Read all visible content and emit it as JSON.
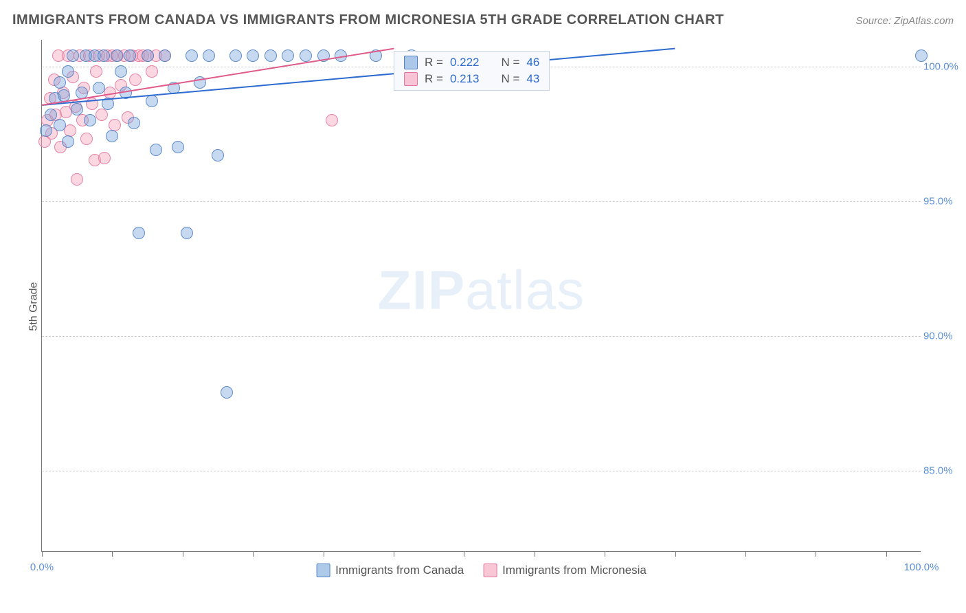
{
  "title": "IMMIGRANTS FROM CANADA VS IMMIGRANTS FROM MICRONESIA 5TH GRADE CORRELATION CHART",
  "source": "Source: ZipAtlas.com",
  "ylabel": "5th Grade",
  "watermark_a": "ZIP",
  "watermark_b": "atlas",
  "chart": {
    "xlim": [
      0,
      100
    ],
    "ylim": [
      82,
      101
    ],
    "yticks": [
      {
        "v": 85.0,
        "label": "85.0%"
      },
      {
        "v": 90.0,
        "label": "90.0%"
      },
      {
        "v": 95.0,
        "label": "95.0%"
      },
      {
        "v": 100.0,
        "label": "100.0%"
      }
    ],
    "xticks_minor": [
      0,
      8,
      16,
      24,
      32,
      40,
      48,
      56,
      64,
      72,
      80,
      88,
      96
    ],
    "xticks_label": [
      {
        "v": 0,
        "label": "0.0%"
      },
      {
        "v": 100,
        "label": "100.0%"
      }
    ],
    "series": {
      "blue": {
        "name": "Immigrants from Canada",
        "color_fill": "rgba(120,165,220,0.42)",
        "color_stroke": "rgba(70,120,190,0.8)",
        "trend_color": "#2e6bd0",
        "R": "0.222",
        "N": "46",
        "trend": {
          "x1": 0,
          "y1": 98.6,
          "x2": 72,
          "y2": 100.7
        },
        "points": [
          [
            0.5,
            97.6
          ],
          [
            1,
            98.2
          ],
          [
            1.5,
            98.8
          ],
          [
            2,
            99.4
          ],
          [
            2,
            97.8
          ],
          [
            2.5,
            98.9
          ],
          [
            3,
            99.8
          ],
          [
            3,
            97.2
          ],
          [
            3.5,
            100.4
          ],
          [
            4,
            98.4
          ],
          [
            4.5,
            99.0
          ],
          [
            5,
            100.4
          ],
          [
            5.5,
            98.0
          ],
          [
            6,
            100.4
          ],
          [
            6.5,
            99.2
          ],
          [
            7,
            100.4
          ],
          [
            7.5,
            98.6
          ],
          [
            8,
            97.4
          ],
          [
            8.5,
            100.4
          ],
          [
            9,
            99.8
          ],
          [
            9.5,
            99.0
          ],
          [
            10,
            100.4
          ],
          [
            10.5,
            97.9
          ],
          [
            11,
            93.8
          ],
          [
            12,
            100.4
          ],
          [
            12.5,
            98.7
          ],
          [
            13,
            96.9
          ],
          [
            14,
            100.4
          ],
          [
            15,
            99.2
          ],
          [
            15.5,
            97.0
          ],
          [
            16.5,
            93.8
          ],
          [
            17,
            100.4
          ],
          [
            18,
            99.4
          ],
          [
            19,
            100.4
          ],
          [
            20,
            96.7
          ],
          [
            21,
            87.9
          ],
          [
            22,
            100.4
          ],
          [
            24,
            100.4
          ],
          [
            26,
            100.4
          ],
          [
            28,
            100.4
          ],
          [
            30,
            100.4
          ],
          [
            32,
            100.4
          ],
          [
            34,
            100.4
          ],
          [
            38,
            100.4
          ],
          [
            42,
            100.4
          ],
          [
            100,
            100.4
          ]
        ]
      },
      "pink": {
        "name": "Immigrants from Micronesia",
        "color_fill": "rgba(245,160,185,0.42)",
        "color_stroke": "rgba(225,110,150,0.8)",
        "trend_color": "#e05a8a",
        "R": "0.213",
        "N": "43",
        "trend": {
          "x1": 0,
          "y1": 98.6,
          "x2": 40,
          "y2": 100.7
        },
        "points": [
          [
            0.3,
            97.2
          ],
          [
            0.6,
            98.0
          ],
          [
            0.9,
            98.8
          ],
          [
            1.1,
            97.5
          ],
          [
            1.4,
            99.5
          ],
          [
            1.6,
            98.2
          ],
          [
            1.9,
            100.4
          ],
          [
            2.1,
            97.0
          ],
          [
            2.4,
            99.0
          ],
          [
            2.7,
            98.3
          ],
          [
            3.0,
            100.4
          ],
          [
            3.2,
            97.6
          ],
          [
            3.5,
            99.6
          ],
          [
            3.8,
            98.5
          ],
          [
            4.0,
            95.8
          ],
          [
            4.3,
            100.4
          ],
          [
            4.6,
            98.0
          ],
          [
            4.8,
            99.2
          ],
          [
            5.1,
            97.3
          ],
          [
            5.4,
            100.4
          ],
          [
            5.7,
            98.6
          ],
          [
            6.0,
            96.5
          ],
          [
            6.2,
            99.8
          ],
          [
            6.5,
            100.4
          ],
          [
            6.8,
            98.2
          ],
          [
            7.1,
            96.6
          ],
          [
            7.4,
            100.4
          ],
          [
            7.7,
            99.0
          ],
          [
            8.0,
            100.4
          ],
          [
            8.3,
            97.8
          ],
          [
            8.6,
            100.4
          ],
          [
            9.0,
            99.3
          ],
          [
            9.4,
            100.4
          ],
          [
            9.8,
            98.1
          ],
          [
            10.2,
            100.4
          ],
          [
            10.6,
            99.5
          ],
          [
            11.0,
            100.4
          ],
          [
            11.5,
            100.4
          ],
          [
            12.0,
            100.4
          ],
          [
            12.5,
            99.8
          ],
          [
            13.0,
            100.4
          ],
          [
            14.0,
            100.4
          ],
          [
            33.0,
            98.0
          ]
        ]
      }
    },
    "legend_top": {
      "r_label": "R =",
      "n_label": "N ="
    },
    "legend_bottom": [
      {
        "swatch": "blue",
        "label": "Immigrants from Canada"
      },
      {
        "swatch": "pink",
        "label": "Immigrants from Micronesia"
      }
    ]
  }
}
